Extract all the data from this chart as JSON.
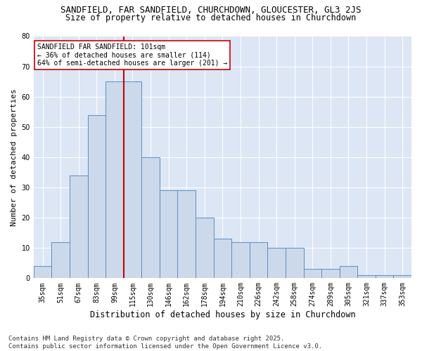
{
  "title_line1": "SANDFIELD, FAR SANDFIELD, CHURCHDOWN, GLOUCESTER, GL3 2JS",
  "title_line2": "Size of property relative to detached houses in Churchdown",
  "xlabel": "Distribution of detached houses by size in Churchdown",
  "ylabel": "Number of detached properties",
  "categories": [
    "35sqm",
    "51sqm",
    "67sqm",
    "83sqm",
    "99sqm",
    "115sqm",
    "130sqm",
    "146sqm",
    "162sqm",
    "178sqm",
    "194sqm",
    "210sqm",
    "226sqm",
    "242sqm",
    "258sqm",
    "274sqm",
    "289sqm",
    "305sqm",
    "321sqm",
    "337sqm",
    "353sqm"
  ],
  "values": [
    4,
    12,
    34,
    54,
    65,
    65,
    40,
    29,
    29,
    20,
    13,
    12,
    12,
    10,
    10,
    3,
    3,
    4,
    1,
    1,
    1
  ],
  "bar_color": "#ccd9ea",
  "bar_edge_color": "#5b8ec4",
  "vline_color": "#cc0000",
  "vline_index": 4.5,
  "ylim": [
    0,
    80
  ],
  "yticks": [
    0,
    10,
    20,
    30,
    40,
    50,
    60,
    70,
    80
  ],
  "annotation_text": "SANDFIELD FAR SANDFIELD: 101sqm\n← 36% of detached houses are smaller (114)\n64% of semi-detached houses are larger (201) →",
  "annotation_box_facecolor": "#ffffff",
  "annotation_box_edgecolor": "#cc0000",
  "footer_text": "Contains HM Land Registry data © Crown copyright and database right 2025.\nContains public sector information licensed under the Open Government Licence v3.0.",
  "bg_color": "#ffffff",
  "plot_bg_color": "#dce6f5",
  "grid_color": "#ffffff",
  "title1_fontsize": 9,
  "title2_fontsize": 8.5,
  "xlabel_fontsize": 8.5,
  "ylabel_fontsize": 8,
  "tick_fontsize": 7,
  "annotation_fontsize": 7,
  "footer_fontsize": 6.5
}
